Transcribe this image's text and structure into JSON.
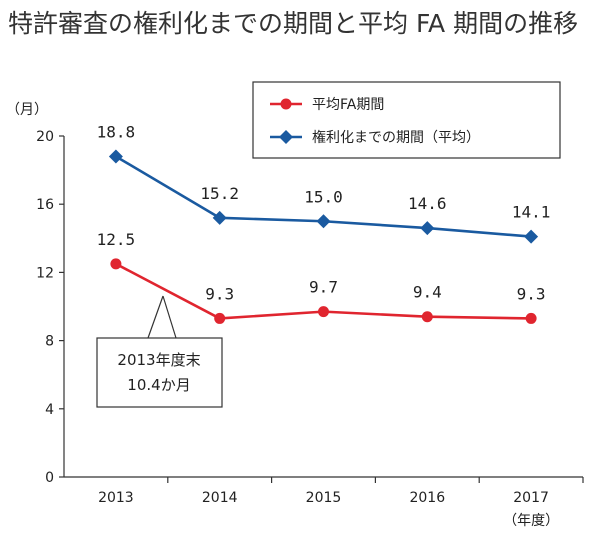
{
  "title": "特許審査の権利化までの期間と平均 FA 期間の推移",
  "chart_data": {
    "type": "line",
    "title": "特許審査の権利化までの期間と平均 FA 期間の推移",
    "ylabel": "（月）",
    "xlabel": "（年度）",
    "categories": [
      "2013",
      "2014",
      "2015",
      "2016",
      "2017"
    ],
    "ylim": [
      0,
      20
    ],
    "yticks": [
      0,
      4,
      8,
      12,
      16,
      20
    ],
    "grid": false,
    "legend_position": "top-right",
    "series": [
      {
        "name": "平均FA期間",
        "values": [
          12.5,
          9.3,
          9.7,
          9.4,
          9.3
        ],
        "labels": [
          "12.5",
          "9.3",
          "9.7",
          "9.4",
          "9.3"
        ],
        "color": "#e0252f",
        "marker": "circle"
      },
      {
        "name": "権利化までの期間（平均）",
        "values": [
          18.8,
          15.2,
          15.0,
          14.6,
          14.1
        ],
        "labels": [
          "18.8",
          "15.2",
          "15.0",
          "14.6",
          "14.1"
        ],
        "color": "#1a5aa0",
        "marker": "diamond"
      }
    ],
    "annotation": {
      "line1": "2013年度末",
      "line2": "10.4か月"
    }
  }
}
